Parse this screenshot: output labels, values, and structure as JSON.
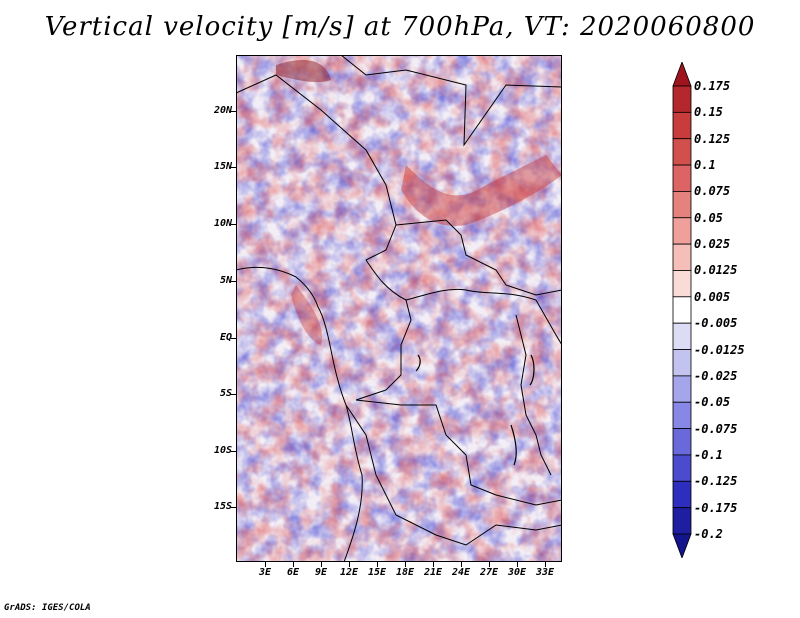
{
  "title": "Vertical velocity [m/s] at 700hPa, VT: 2020060800",
  "credit": "GrADS: IGES/COLA",
  "map": {
    "variable": "Vertical velocity",
    "units": "m/s",
    "level": "700hPa",
    "valid_time": "2020060800",
    "lon_range": [
      0,
      35
    ],
    "lat_range": [
      -20,
      25
    ],
    "lat_ticks": [
      "20N",
      "15N",
      "10N",
      "5N",
      "EQ",
      "5S",
      "10S",
      "15S"
    ],
    "lat_values": [
      20,
      15,
      10,
      5,
      0,
      -5,
      -10,
      -15
    ],
    "lon_ticks": [
      "3E",
      "6E",
      "9E",
      "12E",
      "15E",
      "18E",
      "21E",
      "24E",
      "27E",
      "30E",
      "33E"
    ],
    "lon_values": [
      3,
      6,
      9,
      12,
      15,
      18,
      21,
      24,
      27,
      30,
      33
    ]
  },
  "colorbar": {
    "labels": [
      "0.175",
      "0.15",
      "0.125",
      "0.1",
      "0.075",
      "0.05",
      "0.025",
      "0.0125",
      "0.005",
      "-0.005",
      "-0.0125",
      "-0.025",
      "-0.05",
      "-0.075",
      "-0.1",
      "-0.125",
      "-0.175",
      "-0.2"
    ],
    "colors": [
      "#a0141e",
      "#b4282d",
      "#c83c3c",
      "#d2504b",
      "#dc6464",
      "#e6827d",
      "#f0a09b",
      "#f5beb9",
      "#fadcd7",
      "#ffffff",
      "#dcdcf5",
      "#c3c3f0",
      "#a5a5eb",
      "#8787e6",
      "#6969dc",
      "#4b4bcd",
      "#2d2dbe",
      "#1e1ea0",
      "#14148c"
    ]
  },
  "colors": {
    "coast": "#000000",
    "neutral": "#f4f2f8"
  }
}
